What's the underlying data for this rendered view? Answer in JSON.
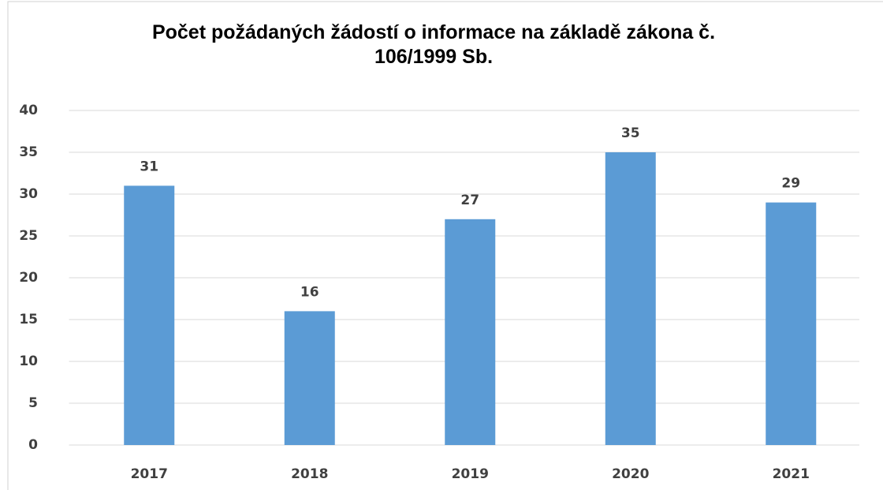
{
  "chart_data": {
    "type": "bar",
    "title": "Počet požádaných žádostí o informace na základě zákona č. 106/1999 Sb.",
    "categories": [
      "2017",
      "2018",
      "2019",
      "2020",
      "2021"
    ],
    "values": [
      31,
      16,
      27,
      35,
      29
    ],
    "color": "#5b9bd5",
    "ylim": [
      0,
      40
    ],
    "yticks": [
      0,
      5,
      10,
      15,
      20,
      25,
      30,
      35,
      40
    ],
    "grid": true
  }
}
